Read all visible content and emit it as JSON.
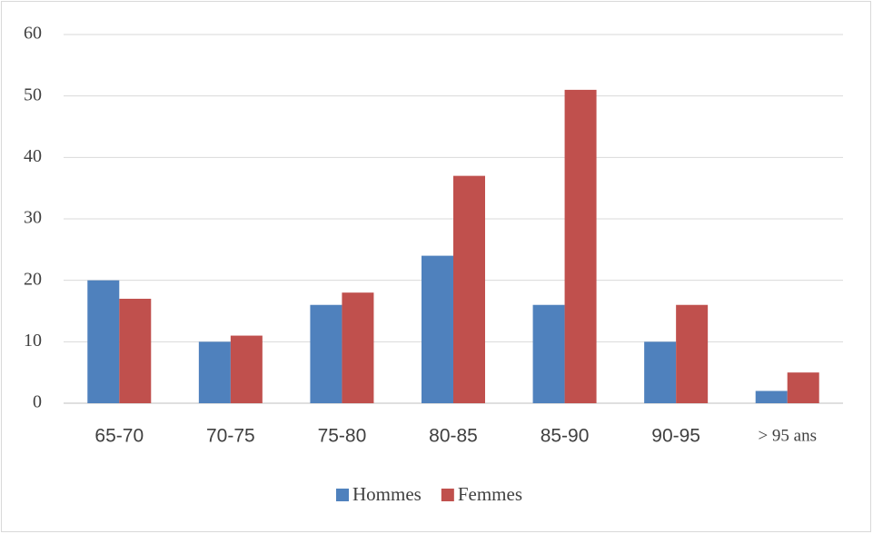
{
  "chart_data": {
    "type": "bar",
    "categories": [
      "65-70",
      "70-75",
      "75-80",
      "80-85",
      "85-90",
      "90-95",
      "> 95 ans"
    ],
    "series": [
      {
        "name": "Hommes",
        "color": "#4f81bd",
        "values": [
          20,
          10,
          16,
          24,
          16,
          10,
          2
        ]
      },
      {
        "name": "Femmes",
        "color": "#c0504d",
        "values": [
          17,
          11,
          18,
          37,
          51,
          16,
          5
        ]
      }
    ],
    "ylim": [
      0,
      60
    ],
    "yticks": [
      0,
      10,
      20,
      30,
      40,
      50,
      60
    ],
    "grid": true,
    "legend": "bottom"
  }
}
